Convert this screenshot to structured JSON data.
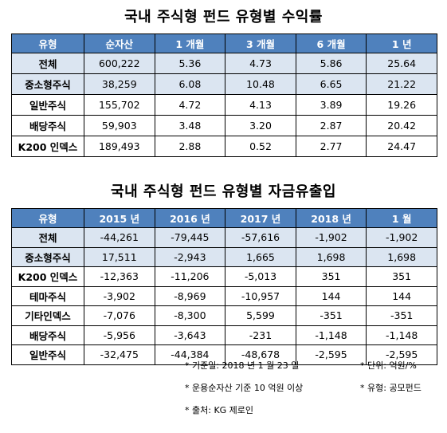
{
  "returns_table": {
    "title": "국내 주식형 펀드 유형별 수익률",
    "headers": [
      "유형",
      "순자산",
      "1 개월",
      "3 개월",
      "6 개월",
      "1 년"
    ],
    "rows": [
      [
        "전체",
        "600,222",
        "5.36",
        "4.73",
        "5.86",
        "25.64"
      ],
      [
        "중소형주식",
        "38,259",
        "6.08",
        "10.48",
        "6.65",
        "21.22"
      ],
      [
        "일반주식",
        "155,702",
        "4.72",
        "4.13",
        "3.89",
        "19.26"
      ],
      [
        "배당주식",
        "59,903",
        "3.48",
        "3.20",
        "2.87",
        "20.42"
      ],
      [
        "K200 인덱스",
        "189,493",
        "2.88",
        "0.52",
        "2.77",
        "24.47"
      ]
    ]
  },
  "flows_table": {
    "title": "국내 주식형 펀드 유형별 자금유출입",
    "headers": [
      "유형",
      "2015 년",
      "2016 년",
      "2017 년",
      "2018 년",
      "1 월"
    ],
    "rows": [
      [
        "전체",
        "-44,261",
        "-79,445",
        "-57,616",
        "-1,902",
        "-1,902"
      ],
      [
        "중소형주식",
        "17,511",
        "-2,943",
        "1,665",
        "1,698",
        "1,698"
      ],
      [
        "K200 인덱스",
        "-12,363",
        "-11,206",
        "-5,013",
        "351",
        "351"
      ],
      [
        "테마주식",
        "-3,902",
        "-8,969",
        "-10,957",
        "144",
        "144"
      ],
      [
        "기타인덱스",
        "-7,076",
        "-8,300",
        "5,599",
        "-351",
        "-351"
      ],
      [
        "배당주식",
        "-5,956",
        "-3,643",
        "-231",
        "-1,148",
        "-1,148"
      ],
      [
        "일반주식",
        "-32,475",
        "-44,384",
        "-48,678",
        "-2,595",
        "-2,595"
      ]
    ]
  },
  "notes": {
    "base_date": "* 기준일: 2018 년 1 월 23 일",
    "unit": "* 단위: 억원/%",
    "criteria": "* 운용순자산 기준  10 억원 이상",
    "fund_type": "* 유형:  공모펀드",
    "source": "* 출처: KG 제로인"
  }
}
